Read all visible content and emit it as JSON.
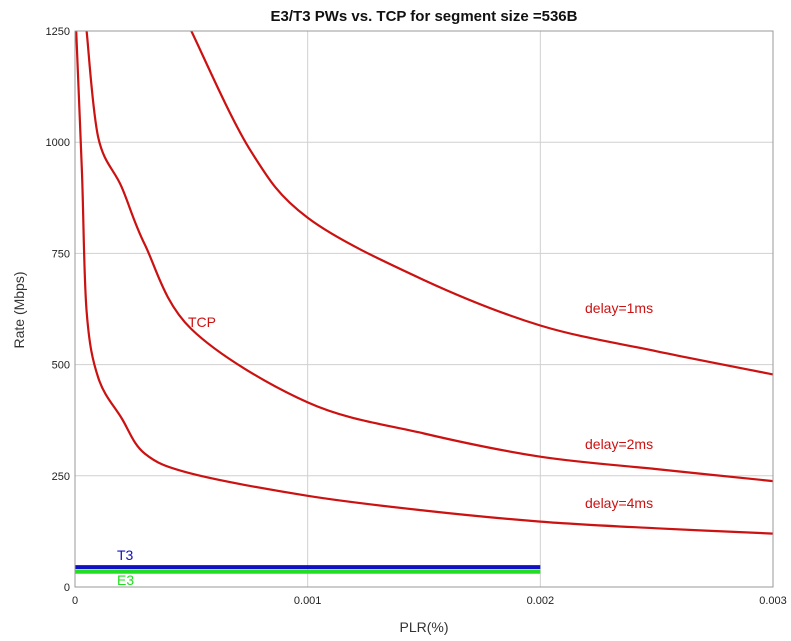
{
  "chart_data": {
    "type": "line",
    "title": "E3/T3 PWs vs. TCP for segment size =536B",
    "xlabel": "PLR(%)",
    "ylabel": "Rate (Mbps)",
    "xlim": [
      0,
      0.003
    ],
    "ylim": [
      0,
      1250
    ],
    "x_ticks": [
      "0",
      "0.001",
      "0.002",
      "0.003"
    ],
    "y_ticks": [
      "0",
      "250",
      "500",
      "750",
      "1000",
      "1250"
    ],
    "grid": true,
    "series": [
      {
        "name": "delay=1ms",
        "color": "#cc1111",
        "x": [
          0.0005,
          0.00075,
          0.001,
          0.0015,
          0.002,
          0.0025,
          0.003
        ],
        "y": [
          1250,
          985,
          830,
          690,
          588,
          530,
          478
        ]
      },
      {
        "name": "delay=2ms",
        "color": "#cc1111",
        "x": [
          5e-05,
          0.0001,
          0.0002,
          0.0003,
          0.0005,
          0.001,
          0.0015,
          0.002,
          0.0025,
          0.003
        ],
        "y": [
          1250,
          1010,
          900,
          770,
          580,
          415,
          345,
          293,
          265,
          238
        ]
      },
      {
        "name": "delay=4ms",
        "color": "#cc1111",
        "x": [
          5e-06,
          3e-05,
          5e-05,
          0.0001,
          0.0002,
          0.0003,
          0.0005,
          0.001,
          0.0015,
          0.002,
          0.0025,
          0.003
        ],
        "y": [
          1250,
          930,
          620,
          470,
          380,
          300,
          255,
          205,
          172,
          147,
          132,
          120
        ]
      },
      {
        "name": "T3",
        "color": "#1010c0",
        "x": [
          0,
          0.002
        ],
        "y": [
          44.7,
          44.7
        ]
      },
      {
        "name": "E3",
        "color": "#22dd22",
        "x": [
          0,
          0.002
        ],
        "y": [
          34.4,
          34.4
        ]
      }
    ],
    "annotations": [
      {
        "text": "TCP",
        "color": "#cc1111"
      },
      {
        "text": "delay=1ms",
        "color": "#cc1111"
      },
      {
        "text": "delay=2ms",
        "color": "#cc1111"
      },
      {
        "text": "delay=4ms",
        "color": "#cc1111"
      },
      {
        "text": "T3",
        "color": "#1010c0"
      },
      {
        "text": "E3",
        "color": "#22dd22"
      }
    ]
  }
}
